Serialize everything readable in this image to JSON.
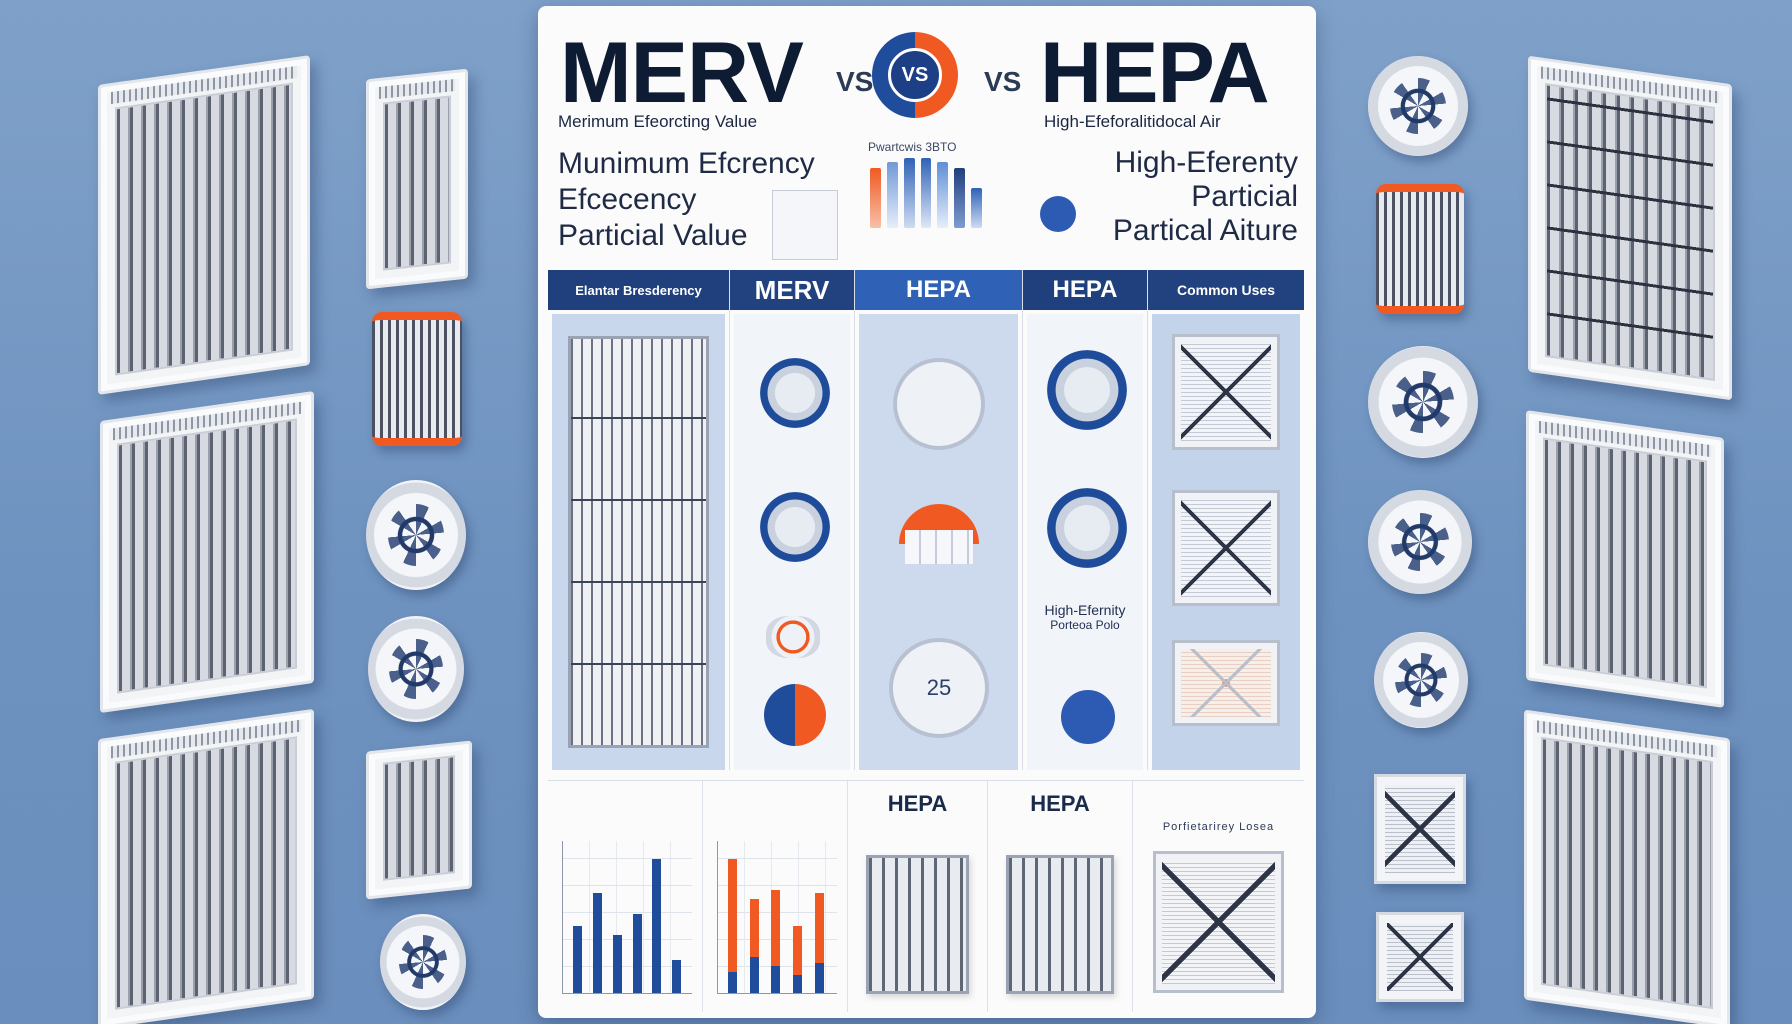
{
  "header": {
    "title_left": "MERV",
    "vs_left": "VS",
    "vs_center": "VS",
    "vs_right": "VS",
    "title_right": "HEPA",
    "subtitle_left": "Merimum Efeorcting Value",
    "subtitle_right": "High-Efeforalitidocal Air"
  },
  "intro": {
    "left_lines": [
      "Munimum Efcrency",
      "Efcecency",
      "Particial Value"
    ],
    "right_lines": [
      "High-Eferenty",
      "Particial",
      "Partical Aiture"
    ],
    "mini_chart_label": "Pwartcwis 3BTO"
  },
  "table": {
    "headers": [
      "Elantar Bresderency",
      "MERV",
      "HEPA",
      "HEPA",
      "Common Uses"
    ],
    "hepa_dial_value": "25",
    "hepa_col2_text": [
      "High-Efernity",
      "Porteoa Polo"
    ]
  },
  "bottom": {
    "headers": [
      "HEPA",
      "HEPA"
    ],
    "right_label": "Porfietarirey Losea"
  },
  "colors": {
    "navy": "#1f3f7d",
    "blue": "#2f62b6",
    "orange": "#f05a22",
    "background": "#7fa1c9"
  },
  "chart_data": [
    {
      "type": "bar",
      "series": [
        {
          "values": [
            44,
            66,
            38,
            52,
            88,
            22
          ]
        }
      ]
    },
    {
      "type": "bar",
      "series": [
        {
          "values": [
            14,
            24,
            18,
            12,
            20
          ]
        },
        {
          "values": [
            74,
            38,
            50,
            32,
            46
          ]
        }
      ]
    }
  ]
}
